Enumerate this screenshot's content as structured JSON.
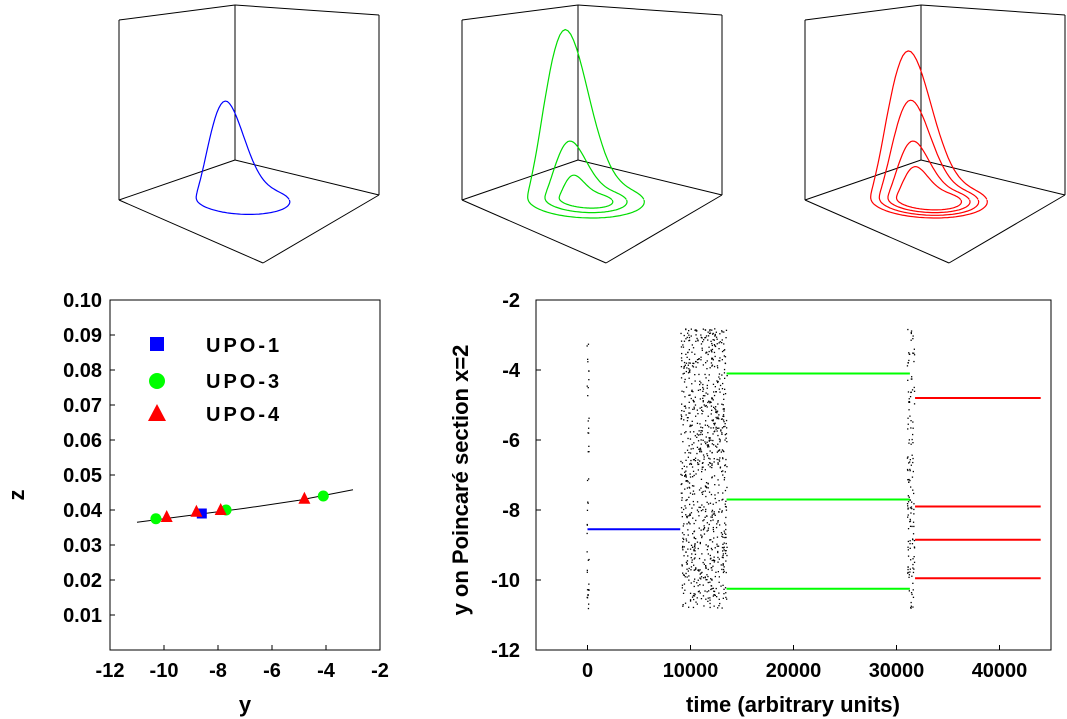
{
  "panels_3d": [
    {
      "color": "#0000ff",
      "label": "UPO-1"
    },
    {
      "color": "#00dd00",
      "label": "UPO-3"
    },
    {
      "color": "#ff0000",
      "label": "UPO-4"
    }
  ],
  "chart_data": [
    {
      "type": "scatter",
      "title": "",
      "xlabel": "y",
      "ylabel": "z",
      "xlim": [
        -12,
        -2
      ],
      "ylim": [
        0,
        0.1
      ],
      "x_ticks": [
        "-12",
        "-10",
        "-8",
        "-6",
        "-4",
        "-2"
      ],
      "y_ticks": [
        "0.01",
        "0.02",
        "0.03",
        "0.04",
        "0.05",
        "0.06",
        "0.07",
        "0.08",
        "0.09",
        "0.10"
      ],
      "legend_position": "top-left",
      "curve": {
        "x": [
          -11,
          -9,
          -7,
          -5,
          -3
        ],
        "y": [
          0.0365,
          0.0385,
          0.0405,
          0.0428,
          0.0458
        ]
      },
      "series": [
        {
          "name": "UPO-1",
          "marker": "square",
          "color": "#0000ff",
          "x": [
            -8.6
          ],
          "y": [
            0.039
          ]
        },
        {
          "name": "UPO-3",
          "marker": "circle",
          "color": "#00ff00",
          "x": [
            -10.3,
            -7.7,
            -4.1
          ],
          "y": [
            0.0375,
            0.04,
            0.044
          ]
        },
        {
          "name": "UPO-4",
          "marker": "triangle",
          "color": "#ff0000",
          "x": [
            -9.9,
            -8.8,
            -7.9,
            -4.8
          ],
          "y": [
            0.038,
            0.0395,
            0.04,
            0.0432
          ]
        }
      ]
    },
    {
      "type": "scatter",
      "title": "",
      "xlabel": "time (arbitrary units)",
      "ylabel": "y on Poincaré section x=2",
      "xlim": [
        -5000,
        45000
      ],
      "ylim": [
        -12,
        -2
      ],
      "x_ticks": [
        "0",
        "10000",
        "20000",
        "30000",
        "40000"
      ],
      "y_ticks": [
        "-12",
        "-10",
        "-8",
        "-6",
        "-4",
        "-2"
      ],
      "segments": [
        {
          "color": "#0000ff",
          "x": [
            0,
            9000
          ],
          "y": -8.55
        },
        {
          "color": "#00ff00",
          "x": [
            13500,
            31300
          ],
          "y": -4.1
        },
        {
          "color": "#00ff00",
          "x": [
            13500,
            31300
          ],
          "y": -7.7
        },
        {
          "color": "#00ff00",
          "x": [
            13500,
            31300
          ],
          "y": -10.25
        },
        {
          "color": "#ff0000",
          "x": [
            31800,
            44000
          ],
          "y": -4.8
        },
        {
          "color": "#ff0000",
          "x": [
            31800,
            44000
          ],
          "y": -7.9
        },
        {
          "color": "#ff0000",
          "x": [
            31800,
            44000
          ],
          "y": -8.85
        },
        {
          "color": "#ff0000",
          "x": [
            31800,
            44000
          ],
          "y": -9.95
        }
      ],
      "chaotic_bands": [
        {
          "x": [
            9000,
            13500
          ],
          "y": [
            -10.8,
            -2.8
          ]
        },
        {
          "x": [
            31000,
            31700
          ],
          "y": [
            -10.8,
            -2.8
          ]
        },
        {
          "x": [
            -100,
            100
          ],
          "y": [
            -10.8,
            -2.8
          ]
        }
      ]
    }
  ]
}
